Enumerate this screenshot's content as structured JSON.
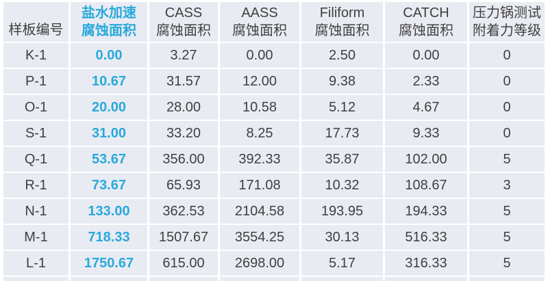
{
  "colors": {
    "highlight": "#29A9DC",
    "text": "#3F3F3F",
    "cell_bg": "#E9EBF2",
    "gap": "#FFFFFF"
  },
  "table": {
    "columns": [
      {
        "key": "sample",
        "line1": "样板编号",
        "line2": ""
      },
      {
        "key": "salt",
        "line1": "盐水加速",
        "line2": "腐蚀面积"
      },
      {
        "key": "cass",
        "line1": "CASS",
        "line2": "腐蚀面积"
      },
      {
        "key": "aass",
        "line1": "AASS",
        "line2": "腐蚀面积"
      },
      {
        "key": "filiform",
        "line1": "Filiform",
        "line2": "腐蚀面积"
      },
      {
        "key": "catch",
        "line1": "CATCH",
        "line2": "腐蚀面积"
      },
      {
        "key": "adhesion",
        "line1": "压力锅测试",
        "line2": "附着力等级"
      }
    ],
    "rows": [
      [
        "K-1",
        "0.00",
        "3.27",
        "0.00",
        "2.50",
        "0.00",
        "0"
      ],
      [
        "P-1",
        "10.67",
        "31.57",
        "12.00",
        "9.38",
        "2.33",
        "0"
      ],
      [
        "O-1",
        "20.00",
        "28.00",
        "10.58",
        "5.12",
        "4.67",
        "0"
      ],
      [
        "S-1",
        "31.00",
        "33.20",
        "8.25",
        "17.73",
        "9.33",
        "0"
      ],
      [
        "Q-1",
        "53.67",
        "356.00",
        "392.33",
        "35.87",
        "102.00",
        "5"
      ],
      [
        "R-1",
        "73.67",
        "65.93",
        "171.08",
        "10.32",
        "108.67",
        "3"
      ],
      [
        "N-1",
        "133.00",
        "362.53",
        "2104.58",
        "193.95",
        "194.33",
        "5"
      ],
      [
        "M-1",
        "718.33",
        "1507.67",
        "3554.25",
        "30.13",
        "516.33",
        "5"
      ],
      [
        "L-1",
        "1750.67",
        "615.00",
        "2698.00",
        "5.17",
        "316.33",
        "5"
      ]
    ]
  },
  "chart_data": {
    "type": "table",
    "columns": [
      "样板编号",
      "盐水加速腐蚀面积",
      "CASS腐蚀面积",
      "AASS腐蚀面积",
      "Filiform腐蚀面积",
      "CATCH腐蚀面积",
      "压力锅测试附着力等级"
    ],
    "rows": [
      [
        "K-1",
        0.0,
        3.27,
        0.0,
        2.5,
        0.0,
        0
      ],
      [
        "P-1",
        10.67,
        31.57,
        12.0,
        9.38,
        2.33,
        0
      ],
      [
        "O-1",
        20.0,
        28.0,
        10.58,
        5.12,
        4.67,
        0
      ],
      [
        "S-1",
        31.0,
        33.2,
        8.25,
        17.73,
        9.33,
        0
      ],
      [
        "Q-1",
        53.67,
        356.0,
        392.33,
        35.87,
        102.0,
        5
      ],
      [
        "R-1",
        73.67,
        65.93,
        171.08,
        10.32,
        108.67,
        3
      ],
      [
        "N-1",
        133.0,
        362.53,
        2104.58,
        193.95,
        194.33,
        5
      ],
      [
        "M-1",
        718.33,
        1507.67,
        3554.25,
        30.13,
        516.33,
        5
      ],
      [
        "L-1",
        1750.67,
        615.0,
        2698.0,
        5.17,
        316.33,
        5
      ]
    ],
    "notes": "Column 2 (盐水加速腐蚀面积) values and header rendered in cyan bold; all other text dark gray; light blue-gray cells separated by white gaps"
  }
}
